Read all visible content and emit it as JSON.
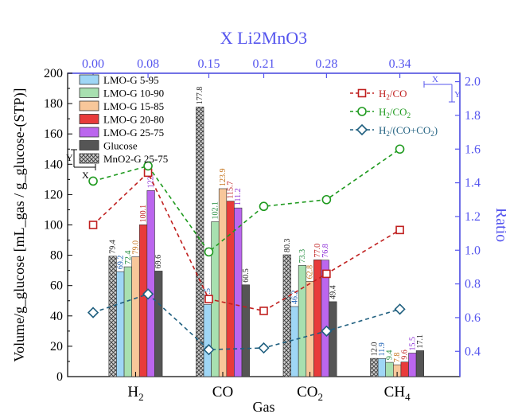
{
  "chart_data": {
    "type": "bar",
    "categories": [
      "H2",
      "CO",
      "CO2",
      "CH4"
    ],
    "xlabel": "Gas",
    "ylabel": "Volume/g_glucose [mL_gas / g_glucose-(STP)]",
    "ylim": [
      0,
      200
    ],
    "yticks": [
      0,
      20,
      40,
      60,
      80,
      100,
      120,
      140,
      160,
      180,
      200
    ],
    "series": [
      {
        "name": "MnO2-G 25-75",
        "color": "#a8a8a8",
        "pattern": "crosshatch",
        "values": [
          79.4,
          177.8,
          80.3,
          12.0
        ]
      },
      {
        "name": "LMO-G 5-95",
        "color": "#9fd6f5",
        "values": [
          69.2,
          47.5,
          46.2,
          11.9
        ]
      },
      {
        "name": "LMO-G 10-90",
        "color": "#a8e0b0",
        "values": [
          72.4,
          102.1,
          73.3,
          9.4
        ]
      },
      {
        "name": "LMO-G 15-85",
        "color": "#f8c79a",
        "values": [
          79.0,
          123.9,
          62.8,
          7.8
        ]
      },
      {
        "name": "LMO-G 20-80",
        "color": "#e83b3b",
        "values": [
          100.1,
          115.7,
          77.0,
          9.6
        ]
      },
      {
        "name": "LMO-G 25-75",
        "color": "#bb66ee",
        "values": [
          122.7,
          111.2,
          76.8,
          15.5
        ]
      },
      {
        "name": "Glucose",
        "color": "#555555",
        "values": [
          69.6,
          60.5,
          49.4,
          17.1
        ]
      }
    ],
    "data_labels": [
      [
        "79.4",
        "69.2",
        "72.4",
        "79.0",
        "100.1",
        "122.7",
        "69.6"
      ],
      [
        "177.8",
        "47.5",
        "102.1",
        "123.9",
        "115.7",
        "111.2",
        "60.5"
      ],
      [
        "80.3",
        "46.2",
        "73.3",
        "62.8",
        "77.0",
        "76.8",
        "49.4"
      ],
      [
        "12.0",
        "11.9",
        "9.4",
        "7.8",
        "9.6",
        "15.5",
        "17.1"
      ]
    ],
    "label_colors": [
      "#222222",
      "#1a5fb4",
      "#1f8a3a",
      "#c5731a",
      "#c0201f",
      "#8a2bd6",
      "#222222"
    ],
    "legend_left": {
      "placement": "top-left",
      "entries": [
        "LMO-G 5-95",
        "LMO-G 10-90",
        "LMO-G 15-85",
        "LMO-G 20-80",
        "LMO-G 25-75",
        "Glucose",
        "MnO2-G 25-75"
      ],
      "axes_hint": {
        "y": "Y",
        "x": "X"
      }
    },
    "ratio_axis": {
      "ylabel": "Ratio",
      "ylim": [
        0.25,
        2.05
      ],
      "yticks": [
        0.4,
        0.6,
        0.8,
        1.0,
        1.2,
        1.4,
        1.6,
        1.8,
        2.0
      ],
      "ytick_labels": [
        "0.4",
        "0.6",
        "0.8",
        "1.0",
        "1.2",
        "1.4",
        "1.6",
        "1.8",
        "2.0"
      ],
      "color": "#5555ee"
    },
    "top_axis": {
      "label": "X Li2MnO3",
      "x": [
        0.0,
        0.08,
        0.15,
        0.21,
        0.28,
        0.34
      ],
      "tick_labels": [
        "0.00",
        "0.08",
        "0.15",
        "0.21",
        "0.28",
        "0.34"
      ],
      "color": "#5555ee"
    },
    "ratio_series": [
      {
        "name": "H2/CO",
        "color": "#c0201f",
        "marker": "square",
        "values": [
          1.15,
          1.46,
          0.71,
          0.64,
          0.86,
          1.12
        ]
      },
      {
        "name": "H2/CO2",
        "color": "#1f9a1f",
        "marker": "circle",
        "values": [
          1.41,
          1.5,
          0.99,
          1.26,
          1.3,
          1.6
        ]
      },
      {
        "name": "H2/(CO+CO2)",
        "color": "#1f5f7f",
        "marker": "diamond",
        "values": [
          0.63,
          0.74,
          0.41,
          0.42,
          0.52,
          0.65
        ]
      }
    ],
    "legend_right": {
      "placement": "top-right",
      "entries": [
        "H2/CO",
        "H2/CO2",
        "H2/(CO+CO2)"
      ],
      "axes_hint": {
        "x": "X",
        "y": "Y"
      }
    },
    "grid": false
  }
}
